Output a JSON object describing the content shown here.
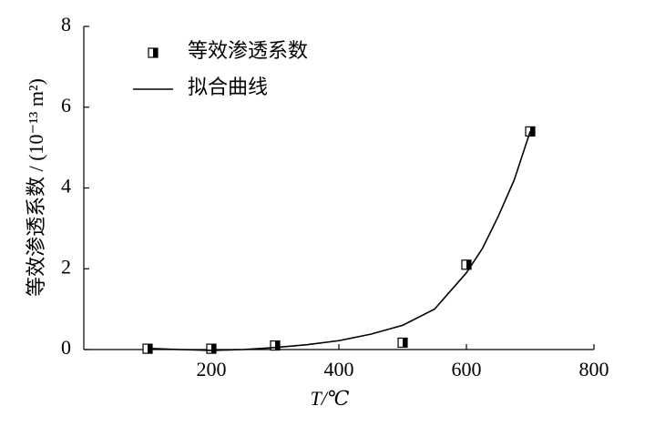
{
  "chart_data": {
    "type": "scatter",
    "xlabel": "T/℃",
    "ylabel": "等效渗透系数 / (10⁻¹³ m²)",
    "xlim": [
      0,
      800
    ],
    "xticks": [
      200,
      400,
      600,
      800
    ],
    "ylim": [
      0,
      8
    ],
    "yticks": [
      0,
      2,
      4,
      6,
      8
    ],
    "legend": "upper left",
    "series": [
      {
        "name": "等效渗透系数",
        "type": "scatter",
        "color": "#000000",
        "x": [
          100,
          200,
          300,
          500,
          600,
          700
        ],
        "values": [
          0.02,
          0.02,
          0.1,
          0.17,
          2.1,
          5.4
        ]
      },
      {
        "name": "拟合曲线",
        "type": "line",
        "color": "#000000",
        "x": [
          100,
          150,
          200,
          250,
          300,
          350,
          400,
          450,
          500,
          550,
          600,
          625,
          650,
          675,
          700
        ],
        "values": [
          0.03,
          0.0,
          -0.02,
          0.0,
          0.05,
          0.12,
          0.22,
          0.38,
          0.6,
          1.0,
          1.9,
          2.5,
          3.3,
          4.2,
          5.4
        ]
      }
    ]
  }
}
